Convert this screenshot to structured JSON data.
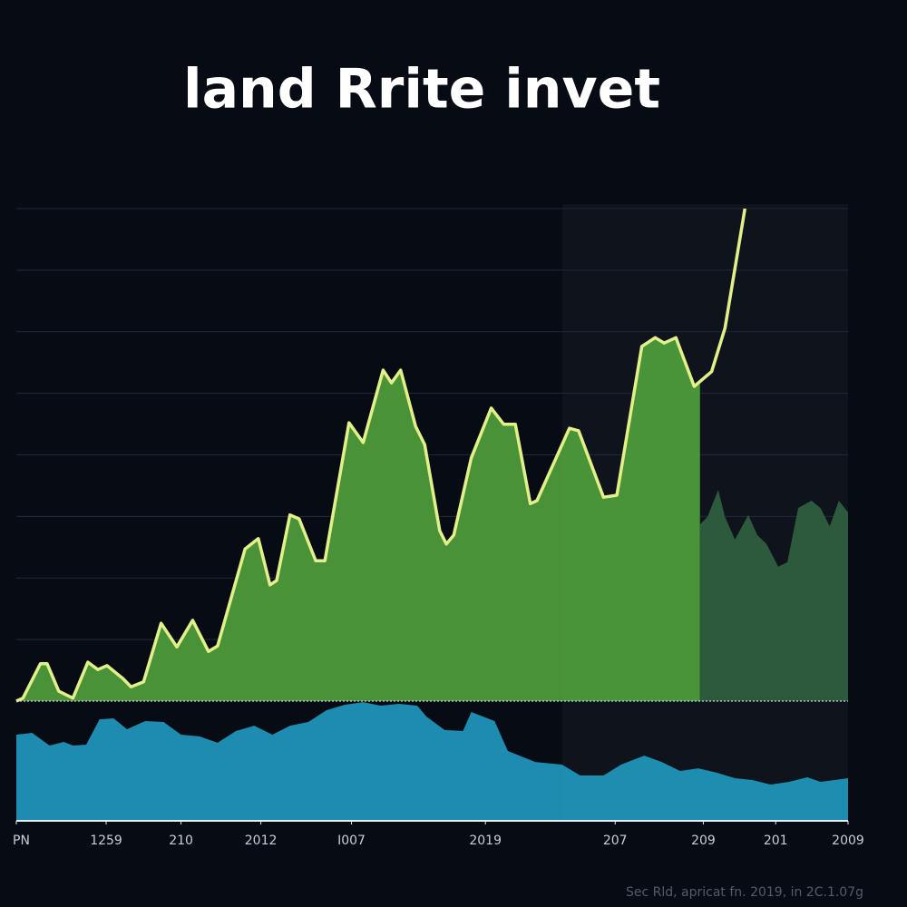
{
  "chart_data": {
    "type": "area",
    "title": "land Rrite invet",
    "source": "Sec Rld, apricat fn. 2019, in 2C.1.07g",
    "xlim": [
      0,
      100
    ],
    "xticks": [
      {
        "value": 0,
        "label": "PN"
      },
      {
        "value": 10.8,
        "label": "1259"
      },
      {
        "value": 19.8,
        "label": "210"
      },
      {
        "value": 29.4,
        "label": "2012"
      },
      {
        "value": 40.3,
        "label": "I007"
      },
      {
        "value": 56.4,
        "label": "2019"
      },
      {
        "value": 72,
        "label": "207"
      },
      {
        "value": 82.6,
        "label": "209"
      },
      {
        "value": 91.3,
        "label": "201"
      },
      {
        "value": 100,
        "label": "2009"
      }
    ],
    "ylim": [
      0,
      100
    ],
    "yticks": [
      12.5,
      25,
      37.5,
      50,
      62.5,
      75,
      87.5,
      100
    ],
    "y2lim": [
      0,
      100
    ],
    "grid": true,
    "series": [
      {
        "color": "#4d9a3a",
        "line_color": "#e3f08a",
        "x": [
          0,
          0.8,
          2.9,
          3.7,
          5.1,
          6.8,
          8.6,
          9.8,
          10.9,
          12.8,
          13.8,
          15.3,
          17.4,
          19.3,
          21.2,
          23.1,
          24.2,
          27.5,
          29.1,
          30.5,
          31.3,
          32.9,
          34.0,
          36.0,
          37.1,
          40.0,
          41.7,
          44.1,
          45.1,
          46.2,
          48.0,
          49.1,
          50.9,
          51.7,
          52.6,
          54.7,
          57.1,
          58.6,
          60.0,
          61.8,
          62.6,
          66.5,
          67.6,
          70.6,
          72.2,
          75.2,
          76.8,
          77.9,
          79.3,
          81.5,
          83.6,
          85.2,
          87.6
        ],
        "values": [
          0,
          0.6,
          7.6,
          7.6,
          2.0,
          0.6,
          7.9,
          6.4,
          7.2,
          4.6,
          2.9,
          3.9,
          15.8,
          11.0,
          16.4,
          10.1,
          11.2,
          30.9,
          33.0,
          23.6,
          24.5,
          37.8,
          37.0,
          28.5,
          28.5,
          56.5,
          52.5,
          67.2,
          64.6,
          67.2,
          55.8,
          52.1,
          34.6,
          31.9,
          33.7,
          49.4,
          59.5,
          56.2,
          56.2,
          40.1,
          40.7,
          55.4,
          54.9,
          41.4,
          41.8,
          72.0,
          73.8,
          72.7,
          73.8,
          63.9,
          66.9,
          75.7,
          100
        ]
      },
      {
        "color": "#2f5e3e",
        "x": [
          82.2,
          83.1,
          84.4,
          85.2,
          86.4,
          88.0,
          89.1,
          90.2,
          91.6,
          92.7,
          94.0,
          95.6,
          96.7,
          97.8,
          98.9,
          100
        ],
        "values": [
          35.9,
          37.4,
          42.9,
          37.4,
          32.8,
          37.8,
          33.7,
          31.9,
          27.3,
          28.2,
          39.2,
          40.7,
          39.2,
          35.5,
          40.7,
          38.3
        ]
      },
      {
        "color": "#1f93b8",
        "axis": "y2",
        "x": [
          0,
          1.9,
          4.0,
          5.7,
          6.8,
          8.4,
          10.0,
          11.7,
          13.3,
          15.5,
          17.7,
          19.8,
          22.0,
          24.2,
          26.4,
          28.6,
          30.8,
          32.9,
          35.1,
          37.3,
          39.5,
          41.7,
          43.8,
          46.0,
          48.2,
          49.3,
          51.5,
          53.7,
          54.7,
          57.5,
          59.1,
          62.4,
          65.6,
          67.8,
          70.6,
          72.7,
          75.5,
          77.6,
          79.8,
          82.0,
          84.2,
          86.4,
          88.5,
          90.7,
          92.9,
          95.1,
          96.7,
          98.4,
          100
        ],
        "values": [
          72.0,
          73.5,
          62.9,
          65.9,
          62.9,
          63.6,
          84.8,
          85.6,
          76.5,
          83.3,
          82.6,
          72.0,
          70.5,
          65.2,
          75.0,
          79.5,
          72.0,
          79.5,
          82.6,
          92.4,
          97.0,
          99.2,
          96.2,
          97.7,
          96.2,
          87.1,
          75.8,
          75.0,
          90.9,
          83.3,
          58.3,
          49.2,
          47.0,
          37.9,
          37.9,
          47.0,
          54.5,
          49.2,
          41.7,
          43.9,
          40.2,
          35.6,
          34.1,
          30.3,
          32.6,
          36.4,
          32.6,
          34.1,
          35.6
        ]
      }
    ]
  }
}
